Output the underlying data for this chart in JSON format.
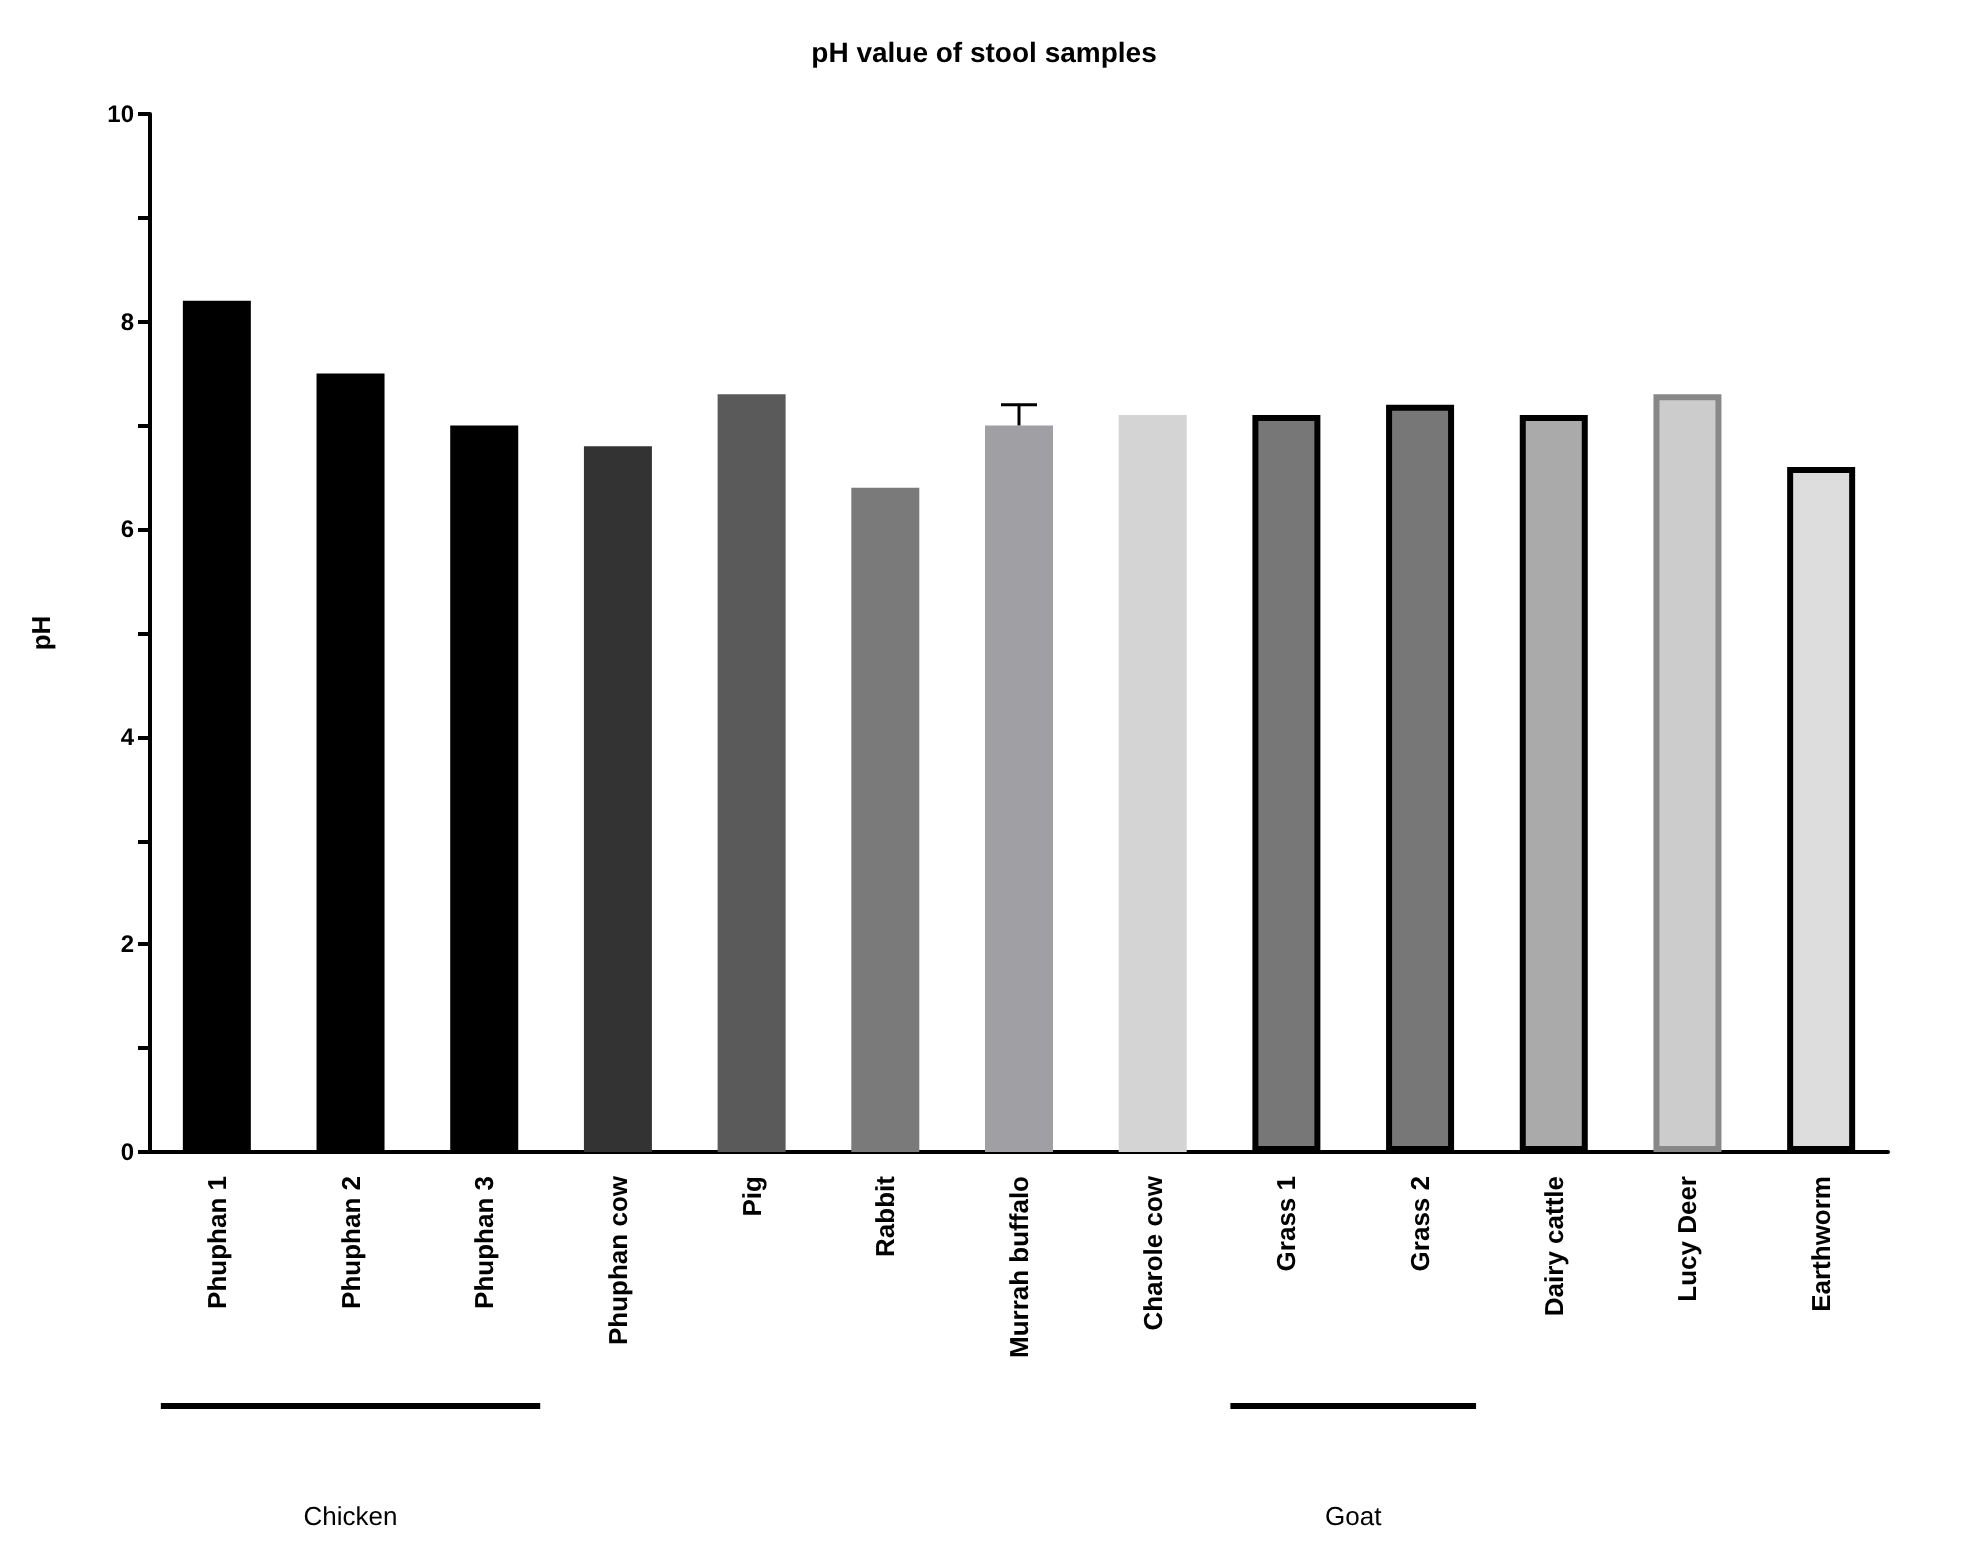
{
  "chart_data": {
    "type": "bar",
    "title": "pH value of stool samples",
    "ylabel": "pH",
    "categories": [
      "Phuphan 1",
      "Phuphan 2",
      "Phuphan 3",
      "Phuphan cow",
      "Pig",
      "Rabbit",
      "Murrah buffalo",
      "Charole cow",
      "Grass 1",
      "Grass 2",
      "Dairy cattle",
      "Lucy Deer",
      "Earthworm"
    ],
    "values": [
      8.2,
      7.5,
      7.0,
      6.8,
      7.3,
      6.4,
      7.0,
      7.1,
      7.1,
      7.2,
      7.1,
      7.3,
      6.6
    ],
    "colors": [
      "#000000",
      "#000000",
      "#000000",
      "#333333",
      "#5a5a5a",
      "#7a7a7a",
      "#a0a0a4",
      "#d4d4d4",
      "#777777",
      "#777777",
      "#aaaaaa",
      "#cccccc",
      "#dddddd"
    ],
    "errors": [
      null,
      null,
      null,
      null,
      null,
      null,
      [
        7.0,
        7.2
      ],
      null,
      null,
      null,
      null,
      null,
      null
    ],
    "ylim": [
      0,
      10
    ],
    "yticks": [
      0,
      2,
      4,
      6,
      8,
      10
    ],
    "annotations": [
      "Chicken",
      "Goat"
    ]
  }
}
